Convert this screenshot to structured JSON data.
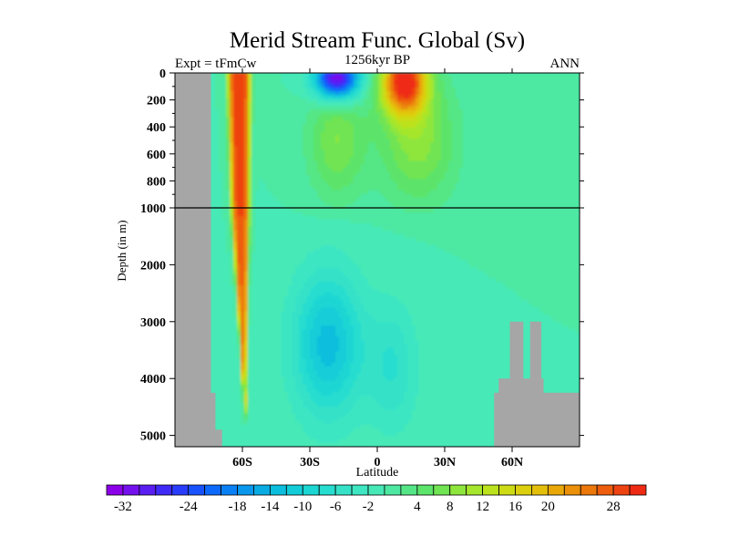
{
  "chart_data": {
    "type": "heatmap",
    "title": "Merid Stream Func. Global (Sv)",
    "subtitle_left": "Expt = tFmCw",
    "subtitle_center": "1256kyr BP",
    "subtitle_right": "ANN",
    "xlabel": "Latitude",
    "ylabel": "Depth (in m)",
    "x_range": [
      -90,
      90
    ],
    "y_range": [
      0,
      5200
    ],
    "y_scale": "piecewise linear: 0–1000 m expanded, 1000–5200 m compressed",
    "x_ticks": [
      {
        "value": -60,
        "label": "60S"
      },
      {
        "value": -30,
        "label": "30S"
      },
      {
        "value": 0,
        "label": "0"
      },
      {
        "value": 30,
        "label": "30N"
      },
      {
        "value": 60,
        "label": "60N"
      }
    ],
    "y_ticks": [
      {
        "value": 0,
        "label": "0"
      },
      {
        "value": 200,
        "label": "200"
      },
      {
        "value": 400,
        "label": "400"
      },
      {
        "value": 600,
        "label": "600"
      },
      {
        "value": 800,
        "label": "800"
      },
      {
        "value": 1000,
        "label": "1000"
      },
      {
        "value": 2000,
        "label": "2000"
      },
      {
        "value": 3000,
        "label": "3000"
      },
      {
        "value": 4000,
        "label": "4000"
      },
      {
        "value": 5000,
        "label": "5000"
      }
    ],
    "colorbar": {
      "levels": [
        -34,
        -32,
        -30,
        -28,
        -26,
        -24,
        -22,
        -20,
        -18,
        -16,
        -14,
        -12,
        -10,
        -8,
        -6,
        -4,
        -2,
        0,
        2,
        4,
        6,
        8,
        10,
        12,
        14,
        16,
        18,
        20,
        22,
        24,
        26,
        28,
        30,
        32
      ],
      "colors": [
        "#8b00e8",
        "#7410ee",
        "#5a1ef3",
        "#3f2af7",
        "#2a3cfb",
        "#1852fc",
        "#0c69fb",
        "#0a80f5",
        "#0996ed",
        "#09abe3",
        "#0bbedd",
        "#12cdd8",
        "#1bd6d3",
        "#26ddcf",
        "#35e2c8",
        "#3ee6c2",
        "#46e9b6",
        "#4ee8a2",
        "#54e686",
        "#5ce46b",
        "#70e452",
        "#8ee63c",
        "#a6e62c",
        "#bce21e",
        "#cddb14",
        "#dcd00e",
        "#e4bf0a",
        "#e9a808",
        "#eb9009",
        "#ec770b",
        "#ed5d0d",
        "#ee4210",
        "#ef2a14"
      ],
      "tick_labels": [
        {
          "value": -32,
          "label": "-32"
        },
        {
          "value": -24,
          "label": "-24"
        },
        {
          "value": -18,
          "label": "-18"
        },
        {
          "value": -14,
          "label": "-14"
        },
        {
          "value": -10,
          "label": "-10"
        },
        {
          "value": -6,
          "label": "-6"
        },
        {
          "value": -2,
          "label": "-2"
        },
        {
          "value": 4,
          "label": "4"
        },
        {
          "value": 8,
          "label": "8"
        },
        {
          "value": 12,
          "label": "12"
        },
        {
          "value": 16,
          "label": "16"
        },
        {
          "value": 20,
          "label": "20"
        },
        {
          "value": 28,
          "label": "28"
        }
      ]
    },
    "background_value": 0,
    "reference_line_depth": 1000,
    "features": [
      {
        "name": "southern-overturning-cell",
        "type": "wedge",
        "lat": [
          -67,
          -55
        ],
        "depth": [
          0,
          4400
        ],
        "peak": 30,
        "approx_extent": "Southern Ocean deep cell reaching ~4400 m"
      },
      {
        "name": "southern-subtropical-cell",
        "type": "blob",
        "lat": -18,
        "depth": 40,
        "peak": -34
      },
      {
        "name": "northern-subtropical-cell",
        "type": "blob",
        "lat": 12,
        "depth": 60,
        "peak": 32
      },
      {
        "name": "southern-upper-positive-cell",
        "type": "blob",
        "lat": -18,
        "depth": 500,
        "peak": 8
      },
      {
        "name": "northern-upper-positive-cell",
        "type": "blob",
        "lat": 18,
        "depth": 500,
        "peak": 9
      },
      {
        "name": "deep-negative-cell",
        "type": "blob",
        "lat": -22,
        "depth": 3400,
        "peak": -13
      },
      {
        "name": "deep-equatorial-negative-cell",
        "type": "blob",
        "lat": 7,
        "depth": 3800,
        "peak": -6
      }
    ],
    "land_mask": [
      {
        "name": "antarctica-land",
        "lat_range": [
          -90,
          -74
        ],
        "depth_range": [
          0,
          5200
        ]
      },
      {
        "name": "antarctica-shelf",
        "lat_range": [
          -74,
          -72
        ],
        "depth_range": [
          4250,
          5200
        ]
      },
      {
        "name": "antarctica-shelf-step",
        "lat_range": [
          -72,
          -69
        ],
        "depth_range": [
          4900,
          5200
        ]
      },
      {
        "name": "northern-ridge-base",
        "lat_range": [
          52,
          90
        ],
        "depth_range": [
          4250,
          5200
        ]
      },
      {
        "name": "northern-ridge-mid",
        "lat_range": [
          54,
          74
        ],
        "depth_range": [
          4000,
          5200
        ]
      },
      {
        "name": "northern-ridge-peak-1",
        "lat_range": [
          59,
          65
        ],
        "depth_range": [
          3000,
          5200
        ]
      },
      {
        "name": "northern-ridge-peak-2",
        "lat_range": [
          68,
          73
        ],
        "depth_range": [
          3000,
          5200
        ]
      }
    ]
  }
}
